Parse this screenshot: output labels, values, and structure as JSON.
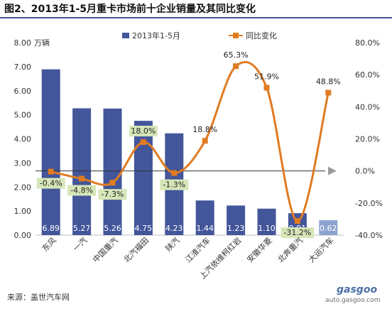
{
  "title": "图2、2013年1-5月重卡市场前十企业销量及其同比变化",
  "source": "来源：盖世汽车网",
  "watermark": {
    "logo": "gasgoo",
    "url": "auto.gasgoo.com"
  },
  "colors": {
    "bar": "#43569a",
    "bar_last": "#8da3cf",
    "line": "#e07b22",
    "label_bg": "#d6e6b8"
  },
  "chart_data": {
    "type": "bar+line",
    "categories": [
      "东风",
      "一汽",
      "中国重汽",
      "北汽福田",
      "陕汽",
      "江淮汽车",
      "上汽依维柯红岩",
      "安徽华菱",
      "北奔重汽",
      "大运汽车"
    ],
    "left_axis": {
      "unit": "万辆",
      "ylim": [
        0,
        8
      ],
      "ticks": [
        "0.00",
        "1.00",
        "2.00",
        "3.00",
        "4.00",
        "5.00",
        "6.00",
        "7.00",
        "8.00"
      ]
    },
    "right_axis": {
      "ylim": [
        -40,
        80
      ],
      "ticks": [
        "-40.0%",
        "-20.0%",
        "0.0%",
        "20.0%",
        "40.0%",
        "60.0%",
        "80.0%"
      ]
    },
    "series": [
      {
        "name": "2013年1-5月",
        "type": "bar",
        "values": [
          6.89,
          5.27,
          5.26,
          4.75,
          4.23,
          1.44,
          1.23,
          1.1,
          0.91,
          0.62
        ],
        "labels": [
          "6.89",
          "5.27",
          "5.26",
          "4.75",
          "4.23",
          "1.44",
          "1.23",
          "1.10",
          "0.91",
          "0.62"
        ]
      },
      {
        "name": "同比变化",
        "type": "line",
        "values": [
          -0.4,
          -4.8,
          -7.3,
          18.0,
          -1.3,
          18.8,
          65.3,
          51.9,
          -31.2,
          48.8
        ],
        "labels": [
          "-0.4%",
          "-4.8%",
          "-7.3%",
          "18.0%",
          "-1.3%",
          "18.8%",
          "65.3%",
          "51.9%",
          "-31.2%",
          "48.8%"
        ]
      }
    ],
    "legend_position": "top",
    "zero_line_arrow": true,
    "grid": false
  }
}
